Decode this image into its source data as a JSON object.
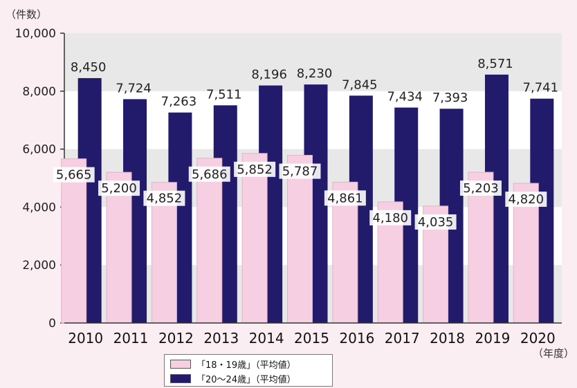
{
  "chart_data": {
    "type": "bar",
    "y_unit_label": "（件数）",
    "x_unit_label": "（年度）",
    "categories": [
      "2010",
      "2011",
      "2012",
      "2013",
      "2014",
      "2015",
      "2016",
      "2017",
      "2018",
      "2019",
      "2020"
    ],
    "series": [
      {
        "name": "「18・19歳」（平均値）",
        "color": "#f6d0e2",
        "values": [
          5665,
          5200,
          4852,
          5686,
          5852,
          5787,
          4861,
          4180,
          4035,
          5203,
          4820
        ],
        "labels": [
          "5,665",
          "5,200",
          "4,852",
          "5,686",
          "5,852",
          "5,787",
          "4,861",
          "4,180",
          "4,035",
          "5,203",
          "4,820"
        ]
      },
      {
        "name": "「20～24歳」（平均値）",
        "color": "#221b6b",
        "values": [
          8450,
          7724,
          7263,
          7511,
          8196,
          8230,
          7845,
          7434,
          7393,
          8571,
          7741
        ],
        "labels": [
          "8,450",
          "7,724",
          "7,263",
          "7,511",
          "8,196",
          "8,230",
          "7,845",
          "7,434",
          "7,393",
          "8,571",
          "7,741"
        ]
      }
    ],
    "ylim": [
      0,
      10000
    ],
    "yticks": [
      0,
      2000,
      4000,
      6000,
      8000,
      10000
    ],
    "ytick_labels": [
      "0",
      "2,000",
      "4,000",
      "6,000",
      "8,000",
      "10,000"
    ],
    "grid": "alternating horizontal bands",
    "legend_position": "bottom"
  }
}
